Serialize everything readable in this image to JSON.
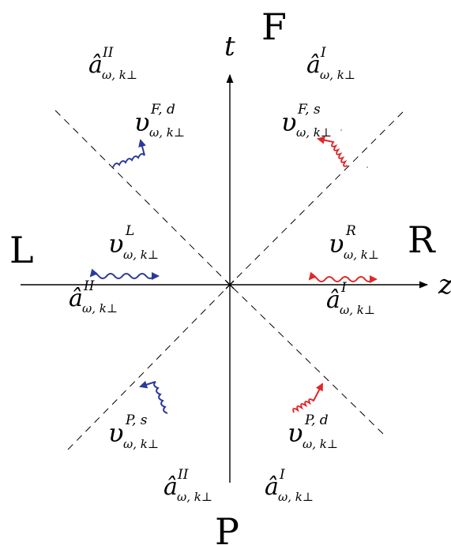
{
  "regions": {
    "future": "F",
    "past": "P",
    "left": "L",
    "right": "R"
  },
  "axes": {
    "time": "t",
    "space": "z"
  },
  "operators": {
    "future_left": {
      "base": "â",
      "sup": "II",
      "sub": "ω, k⊥"
    },
    "future_right": {
      "base": "â",
      "sup": "I",
      "sub": "ω, k⊥"
    },
    "left_wedge": {
      "base": "â",
      "sup": "II",
      "sub": "ω, k⊥"
    },
    "right_wedge": {
      "base": "â",
      "sup": "I",
      "sub": "ω, k⊥"
    },
    "past_left": {
      "base": "â",
      "sup": "II",
      "sub": "ω, k⊥"
    },
    "past_right": {
      "base": "â",
      "sup": "I",
      "sub": "ω, k⊥"
    }
  },
  "modes": {
    "future_d": {
      "base": "υ",
      "sup": "F, d",
      "sub": "ω, k⊥"
    },
    "future_s": {
      "base": "υ",
      "sup": "F, s",
      "sub": "ω, k⊥"
    },
    "left": {
      "base": "υ",
      "sup": "L",
      "sub": "ω, k⊥"
    },
    "right": {
      "base": "υ",
      "sup": "R",
      "sub": "ω, k⊥"
    },
    "past_s": {
      "base": "υ",
      "sup": "P, s",
      "sub": "ω, k⊥"
    },
    "past_d": {
      "base": "υ",
      "sup": "P, d",
      "sub": "ω, k⊥"
    }
  },
  "colors": {
    "blue_wave": "#2a3a9a",
    "red_wave": "#e0282a",
    "axes": "#000000"
  }
}
